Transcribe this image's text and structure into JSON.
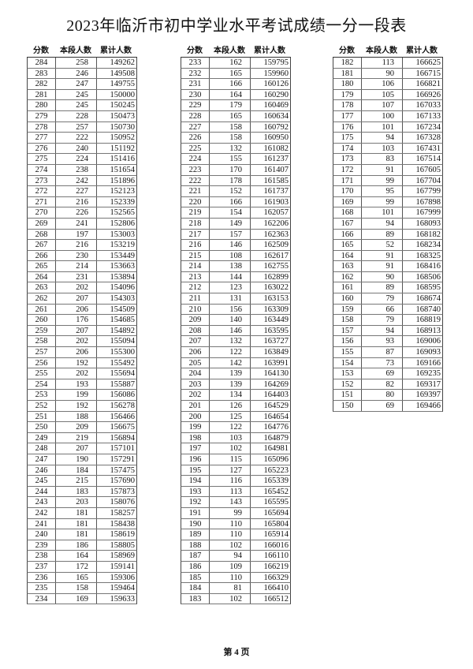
{
  "title": "2023年临沂市初中学业水平考试成绩一分一段表",
  "headers": [
    "分数",
    "本段人数",
    "累计人数"
  ],
  "tables": [
    {
      "rows": [
        [
          "284",
          "258",
          "149262"
        ],
        [
          "283",
          "246",
          "149508"
        ],
        [
          "282",
          "247",
          "149755"
        ],
        [
          "281",
          "245",
          "150000"
        ],
        [
          "280",
          "245",
          "150245"
        ],
        [
          "279",
          "228",
          "150473"
        ],
        [
          "278",
          "257",
          "150730"
        ],
        [
          "277",
          "222",
          "150952"
        ],
        [
          "276",
          "240",
          "151192"
        ],
        [
          "275",
          "224",
          "151416"
        ],
        [
          "274",
          "238",
          "151654"
        ],
        [
          "273",
          "242",
          "151896"
        ],
        [
          "272",
          "227",
          "152123"
        ],
        [
          "271",
          "216",
          "152339"
        ],
        [
          "270",
          "226",
          "152565"
        ],
        [
          "269",
          "241",
          "152806"
        ],
        [
          "268",
          "197",
          "153003"
        ],
        [
          "267",
          "216",
          "153219"
        ],
        [
          "266",
          "230",
          "153449"
        ],
        [
          "265",
          "214",
          "153663"
        ],
        [
          "264",
          "231",
          "153894"
        ],
        [
          "263",
          "202",
          "154096"
        ],
        [
          "262",
          "207",
          "154303"
        ],
        [
          "261",
          "206",
          "154509"
        ],
        [
          "260",
          "176",
          "154685"
        ],
        [
          "259",
          "207",
          "154892"
        ],
        [
          "258",
          "202",
          "155094"
        ],
        [
          "257",
          "206",
          "155300"
        ],
        [
          "256",
          "192",
          "155492"
        ],
        [
          "255",
          "202",
          "155694"
        ],
        [
          "254",
          "193",
          "155887"
        ],
        [
          "253",
          "199",
          "156086"
        ],
        [
          "252",
          "192",
          "156278"
        ],
        [
          "251",
          "188",
          "156466"
        ],
        [
          "250",
          "209",
          "156675"
        ],
        [
          "249",
          "219",
          "156894"
        ],
        [
          "248",
          "207",
          "157101"
        ],
        [
          "247",
          "190",
          "157291"
        ],
        [
          "246",
          "184",
          "157475"
        ],
        [
          "245",
          "215",
          "157690"
        ],
        [
          "244",
          "183",
          "157873"
        ],
        [
          "243",
          "203",
          "158076"
        ],
        [
          "242",
          "181",
          "158257"
        ],
        [
          "241",
          "181",
          "158438"
        ],
        [
          "240",
          "181",
          "158619"
        ],
        [
          "239",
          "186",
          "158805"
        ],
        [
          "238",
          "164",
          "158969"
        ],
        [
          "237",
          "172",
          "159141"
        ],
        [
          "236",
          "165",
          "159306"
        ],
        [
          "235",
          "158",
          "159464"
        ],
        [
          "234",
          "169",
          "159633"
        ]
      ]
    },
    {
      "rows": [
        [
          "233",
          "162",
          "159795"
        ],
        [
          "232",
          "165",
          "159960"
        ],
        [
          "231",
          "166",
          "160126"
        ],
        [
          "230",
          "164",
          "160290"
        ],
        [
          "229",
          "179",
          "160469"
        ],
        [
          "228",
          "165",
          "160634"
        ],
        [
          "227",
          "158",
          "160792"
        ],
        [
          "226",
          "158",
          "160950"
        ],
        [
          "225",
          "132",
          "161082"
        ],
        [
          "224",
          "155",
          "161237"
        ],
        [
          "223",
          "170",
          "161407"
        ],
        [
          "222",
          "178",
          "161585"
        ],
        [
          "221",
          "152",
          "161737"
        ],
        [
          "220",
          "166",
          "161903"
        ],
        [
          "219",
          "154",
          "162057"
        ],
        [
          "218",
          "149",
          "162206"
        ],
        [
          "217",
          "157",
          "162363"
        ],
        [
          "216",
          "146",
          "162509"
        ],
        [
          "215",
          "108",
          "162617"
        ],
        [
          "214",
          "138",
          "162755"
        ],
        [
          "213",
          "144",
          "162899"
        ],
        [
          "212",
          "123",
          "163022"
        ],
        [
          "211",
          "131",
          "163153"
        ],
        [
          "210",
          "156",
          "163309"
        ],
        [
          "209",
          "140",
          "163449"
        ],
        [
          "208",
          "146",
          "163595"
        ],
        [
          "207",
          "132",
          "163727"
        ],
        [
          "206",
          "122",
          "163849"
        ],
        [
          "205",
          "142",
          "163991"
        ],
        [
          "204",
          "139",
          "164130"
        ],
        [
          "203",
          "139",
          "164269"
        ],
        [
          "202",
          "134",
          "164403"
        ],
        [
          "201",
          "126",
          "164529"
        ],
        [
          "200",
          "125",
          "164654"
        ],
        [
          "199",
          "122",
          "164776"
        ],
        [
          "198",
          "103",
          "164879"
        ],
        [
          "197",
          "102",
          "164981"
        ],
        [
          "196",
          "115",
          "165096"
        ],
        [
          "195",
          "127",
          "165223"
        ],
        [
          "194",
          "116",
          "165339"
        ],
        [
          "193",
          "113",
          "165452"
        ],
        [
          "192",
          "143",
          "165595"
        ],
        [
          "191",
          "99",
          "165694"
        ],
        [
          "190",
          "110",
          "165804"
        ],
        [
          "189",
          "110",
          "165914"
        ],
        [
          "188",
          "102",
          "166016"
        ],
        [
          "187",
          "94",
          "166110"
        ],
        [
          "186",
          "109",
          "166219"
        ],
        [
          "185",
          "110",
          "166329"
        ],
        [
          "184",
          "81",
          "166410"
        ],
        [
          "183",
          "102",
          "166512"
        ]
      ]
    },
    {
      "rows": [
        [
          "182",
          "113",
          "166625"
        ],
        [
          "181",
          "90",
          "166715"
        ],
        [
          "180",
          "106",
          "166821"
        ],
        [
          "179",
          "105",
          "166926"
        ],
        [
          "178",
          "107",
          "167033"
        ],
        [
          "177",
          "100",
          "167133"
        ],
        [
          "176",
          "101",
          "167234"
        ],
        [
          "175",
          "94",
          "167328"
        ],
        [
          "174",
          "103",
          "167431"
        ],
        [
          "173",
          "83",
          "167514"
        ],
        [
          "172",
          "91",
          "167605"
        ],
        [
          "171",
          "99",
          "167704"
        ],
        [
          "170",
          "95",
          "167799"
        ],
        [
          "169",
          "99",
          "167898"
        ],
        [
          "168",
          "101",
          "167999"
        ],
        [
          "167",
          "94",
          "168093"
        ],
        [
          "166",
          "89",
          "168182"
        ],
        [
          "165",
          "52",
          "168234"
        ],
        [
          "164",
          "91",
          "168325"
        ],
        [
          "163",
          "91",
          "168416"
        ],
        [
          "162",
          "90",
          "168506"
        ],
        [
          "161",
          "89",
          "168595"
        ],
        [
          "160",
          "79",
          "168674"
        ],
        [
          "159",
          "66",
          "168740"
        ],
        [
          "158",
          "79",
          "168819"
        ],
        [
          "157",
          "94",
          "168913"
        ],
        [
          "156",
          "93",
          "169006"
        ],
        [
          "155",
          "87",
          "169093"
        ],
        [
          "154",
          "73",
          "169166"
        ],
        [
          "153",
          "69",
          "169235"
        ],
        [
          "152",
          "82",
          "169317"
        ],
        [
          "151",
          "80",
          "169397"
        ],
        [
          "150",
          "69",
          "169466"
        ]
      ]
    }
  ],
  "footer": "第 4 页"
}
